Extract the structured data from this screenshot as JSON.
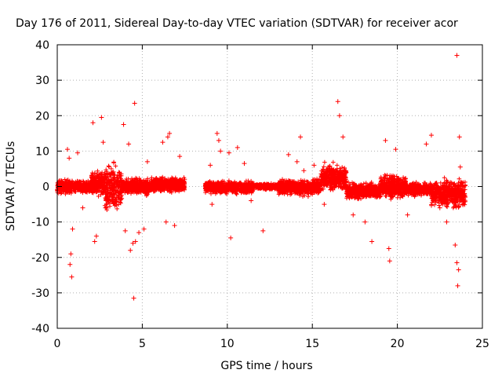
{
  "chart_data": {
    "type": "scatter",
    "title": "Day 176 of 2011, Sidereal Day-to-day VTEC variation (SDTVAR) for receiver acor",
    "xlabel": "GPS time / hours",
    "ylabel": "SDTVAR / TECUs",
    "xlim": [
      0,
      25
    ],
    "ylim": [
      -40,
      40
    ],
    "xticks": [
      0,
      5,
      10,
      15,
      20,
      25
    ],
    "yticks": [
      -40,
      -30,
      -20,
      -10,
      0,
      10,
      20,
      30,
      40
    ],
    "grid": true,
    "marker": "+",
    "series_color": "#ff0000",
    "series": [
      {
        "name": "SDTVAR",
        "band_segments": [
          {
            "t_start": 0.0,
            "t_end": 0.9,
            "low": -2.5,
            "high": 2.5
          },
          {
            "t_start": 0.9,
            "t_end": 2.0,
            "low": -2.0,
            "high": 2.0
          },
          {
            "t_start": 2.0,
            "t_end": 2.8,
            "low": -4.0,
            "high": 5.0
          },
          {
            "t_start": 2.8,
            "t_end": 3.8,
            "low": -9.0,
            "high": 8.0
          },
          {
            "t_start": 3.8,
            "t_end": 5.5,
            "low": -3.0,
            "high": 3.0
          },
          {
            "t_start": 5.5,
            "t_end": 7.5,
            "low": -2.0,
            "high": 3.0
          },
          {
            "t_start": 8.7,
            "t_end": 11.5,
            "low": -2.5,
            "high": 2.0
          },
          {
            "t_start": 11.5,
            "t_end": 13.0,
            "low": -1.0,
            "high": 1.0
          },
          {
            "t_start": 13.0,
            "t_end": 15.5,
            "low": -3.0,
            "high": 2.5
          },
          {
            "t_start": 15.5,
            "t_end": 17.0,
            "low": -2.0,
            "high": 7.0
          },
          {
            "t_start": 17.0,
            "t_end": 19.0,
            "low": -4.0,
            "high": 1.5
          },
          {
            "t_start": 19.0,
            "t_end": 20.5,
            "low": -4.0,
            "high": 4.0
          },
          {
            "t_start": 20.5,
            "t_end": 22.0,
            "low": -3.0,
            "high": 1.5
          },
          {
            "t_start": 22.0,
            "t_end": 24.0,
            "low": -7.0,
            "high": 3.0
          }
        ],
        "outliers": [
          [
            0.6,
            10.5
          ],
          [
            0.7,
            8.0
          ],
          [
            0.8,
            -19.0
          ],
          [
            0.85,
            -25.5
          ],
          [
            0.9,
            -12.0
          ],
          [
            0.75,
            -22.0
          ],
          [
            1.2,
            9.5
          ],
          [
            1.5,
            -6.0
          ],
          [
            2.1,
            18.0
          ],
          [
            2.2,
            -15.5
          ],
          [
            2.3,
            -14.0
          ],
          [
            2.6,
            19.5
          ],
          [
            2.7,
            12.5
          ],
          [
            3.9,
            17.5
          ],
          [
            4.0,
            -12.5
          ],
          [
            4.2,
            12.0
          ],
          [
            4.3,
            -18.0
          ],
          [
            4.45,
            -16.0
          ],
          [
            4.55,
            23.5
          ],
          [
            4.6,
            -15.5
          ],
          [
            4.5,
            -31.5
          ],
          [
            4.8,
            -13.0
          ],
          [
            5.1,
            -12.0
          ],
          [
            5.3,
            7.0
          ],
          [
            6.2,
            12.5
          ],
          [
            6.5,
            14.0
          ],
          [
            6.6,
            15.0
          ],
          [
            6.4,
            -10.0
          ],
          [
            6.9,
            -11.0
          ],
          [
            7.2,
            8.5
          ],
          [
            9.0,
            6.0
          ],
          [
            9.4,
            15.0
          ],
          [
            9.5,
            13.0
          ],
          [
            9.6,
            10.0
          ],
          [
            9.1,
            -5.0
          ],
          [
            10.1,
            9.5
          ],
          [
            10.2,
            -14.5
          ],
          [
            10.6,
            11.0
          ],
          [
            11.0,
            6.5
          ],
          [
            11.4,
            -4.0
          ],
          [
            12.1,
            -12.5
          ],
          [
            13.6,
            9.0
          ],
          [
            14.1,
            7.0
          ],
          [
            14.3,
            14.0
          ],
          [
            14.5,
            4.5
          ],
          [
            15.1,
            6.0
          ],
          [
            15.7,
            -5.0
          ],
          [
            16.5,
            24.0
          ],
          [
            16.6,
            20.0
          ],
          [
            16.8,
            14.0
          ],
          [
            17.4,
            -8.0
          ],
          [
            18.1,
            -10.0
          ],
          [
            18.5,
            -15.5
          ],
          [
            19.3,
            13.0
          ],
          [
            19.5,
            -17.5
          ],
          [
            19.55,
            -21.0
          ],
          [
            19.9,
            10.5
          ],
          [
            20.6,
            -8.0
          ],
          [
            21.7,
            12.0
          ],
          [
            22.0,
            14.5
          ],
          [
            22.5,
            -6.0
          ],
          [
            22.9,
            -10.0
          ],
          [
            23.4,
            -16.5
          ],
          [
            23.5,
            -21.5
          ],
          [
            23.55,
            -28.0
          ],
          [
            23.6,
            -23.5
          ],
          [
            23.5,
            37.0
          ],
          [
            23.65,
            14.0
          ],
          [
            23.7,
            5.5
          ]
        ]
      }
    ]
  }
}
